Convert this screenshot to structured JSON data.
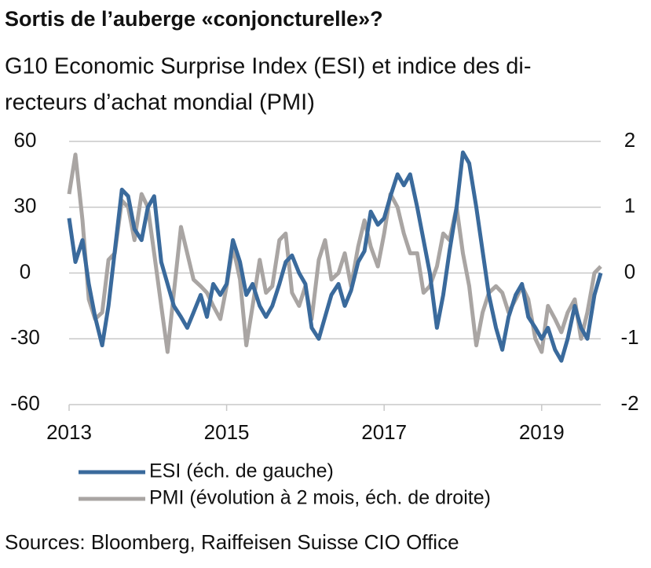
{
  "chart_data": {
    "type": "line",
    "title": "Sortis de l’auberge «conjoncturelle»?",
    "subtitle": [
      "G10 Economic Surprise Index (ESI) et indice des di-",
      "recteurs d’achat mondial (PMI)"
    ],
    "source": "Sources: Bloomberg, Raiffeisen Suisse CIO Office",
    "x": [
      2013,
      2013.08,
      2013.17,
      2013.25,
      2013.33,
      2013.42,
      2013.5,
      2013.58,
      2013.67,
      2013.75,
      2013.83,
      2013.92,
      2014,
      2014.08,
      2014.17,
      2014.25,
      2014.33,
      2014.42,
      2014.5,
      2014.58,
      2014.67,
      2014.75,
      2014.83,
      2014.92,
      2015,
      2015.08,
      2015.17,
      2015.25,
      2015.33,
      2015.42,
      2015.5,
      2015.58,
      2015.67,
      2015.75,
      2015.83,
      2015.92,
      2016,
      2016.08,
      2016.17,
      2016.25,
      2016.33,
      2016.42,
      2016.5,
      2016.58,
      2016.67,
      2016.75,
      2016.83,
      2016.92,
      2017,
      2017.08,
      2017.17,
      2017.25,
      2017.33,
      2017.42,
      2017.5,
      2017.58,
      2017.67,
      2017.75,
      2017.83,
      2017.92,
      2018,
      2018.08,
      2018.17,
      2018.25,
      2018.33,
      2018.42,
      2018.5,
      2018.58,
      2018.67,
      2018.75,
      2018.83,
      2018.92,
      2019,
      2019.08,
      2019.17,
      2019.25,
      2019.33,
      2019.42,
      2019.5,
      2019.58,
      2019.67,
      2019.75
    ],
    "series": [
      {
        "name": "ESI (éch. de gauche)",
        "color": "#3a6a9c",
        "axis": "y",
        "values": [
          25,
          5,
          15,
          -5,
          -20,
          -33,
          -15,
          10,
          38,
          35,
          20,
          15,
          30,
          35,
          5,
          -5,
          -15,
          -20,
          -25,
          -18,
          -10,
          -20,
          -5,
          -10,
          -5,
          15,
          5,
          -10,
          -5,
          -15,
          -20,
          -15,
          -5,
          5,
          8,
          0,
          -5,
          -25,
          -30,
          -20,
          -10,
          -5,
          -15,
          -8,
          5,
          10,
          28,
          22,
          25,
          35,
          45,
          40,
          45,
          30,
          15,
          0,
          -25,
          -10,
          10,
          30,
          55,
          50,
          30,
          10,
          -10,
          -25,
          -35,
          -20,
          -10,
          -5,
          -20,
          -25,
          -30,
          -25,
          -35,
          -40,
          -30,
          -15,
          -25,
          -30,
          -10,
          0
        ]
      },
      {
        "name": "PMI (évolution à 2 mois, éch. de droite)",
        "color": "#a9a5a3",
        "axis": "y2",
        "values": [
          1.2,
          1.8,
          0.8,
          -0.4,
          -0.7,
          -0.6,
          0.2,
          0.3,
          1.1,
          1.0,
          0.5,
          1.2,
          1.0,
          0.3,
          -0.5,
          -1.2,
          -0.3,
          0.7,
          0.3,
          -0.1,
          -0.2,
          -0.3,
          -0.5,
          -0.7,
          -0.2,
          0.4,
          -0.1,
          -1.1,
          -0.5,
          0.2,
          -0.3,
          -0.2,
          0.5,
          0.6,
          -0.3,
          -0.5,
          -0.2,
          -0.7,
          0.2,
          0.5,
          -0.1,
          0.0,
          0.3,
          -0.2,
          0.4,
          0.8,
          0.4,
          0.1,
          0.6,
          1.2,
          1.0,
          0.6,
          0.3,
          0.3,
          -0.3,
          -0.2,
          0.1,
          0.6,
          0.5,
          1.0,
          0.3,
          -0.2,
          -1.1,
          -0.6,
          -0.3,
          -0.2,
          -0.3,
          -0.6,
          -0.4,
          -0.2,
          -0.4,
          -1.0,
          -1.2,
          -0.5,
          -0.7,
          -0.9,
          -0.6,
          -0.4,
          -1.0,
          -0.6,
          0.0,
          0.1
        ]
      }
    ],
    "xlim": [
      2013,
      2019.75
    ],
    "xticks": [
      2013,
      2015,
      2017,
      2019
    ],
    "ylim": [
      -60,
      60
    ],
    "yticks": [
      -60,
      -30,
      0,
      30,
      60
    ],
    "y2lim": [
      -2,
      2
    ],
    "y2ticks": [
      -2,
      -1,
      0,
      1,
      2
    ],
    "grid": true
  }
}
